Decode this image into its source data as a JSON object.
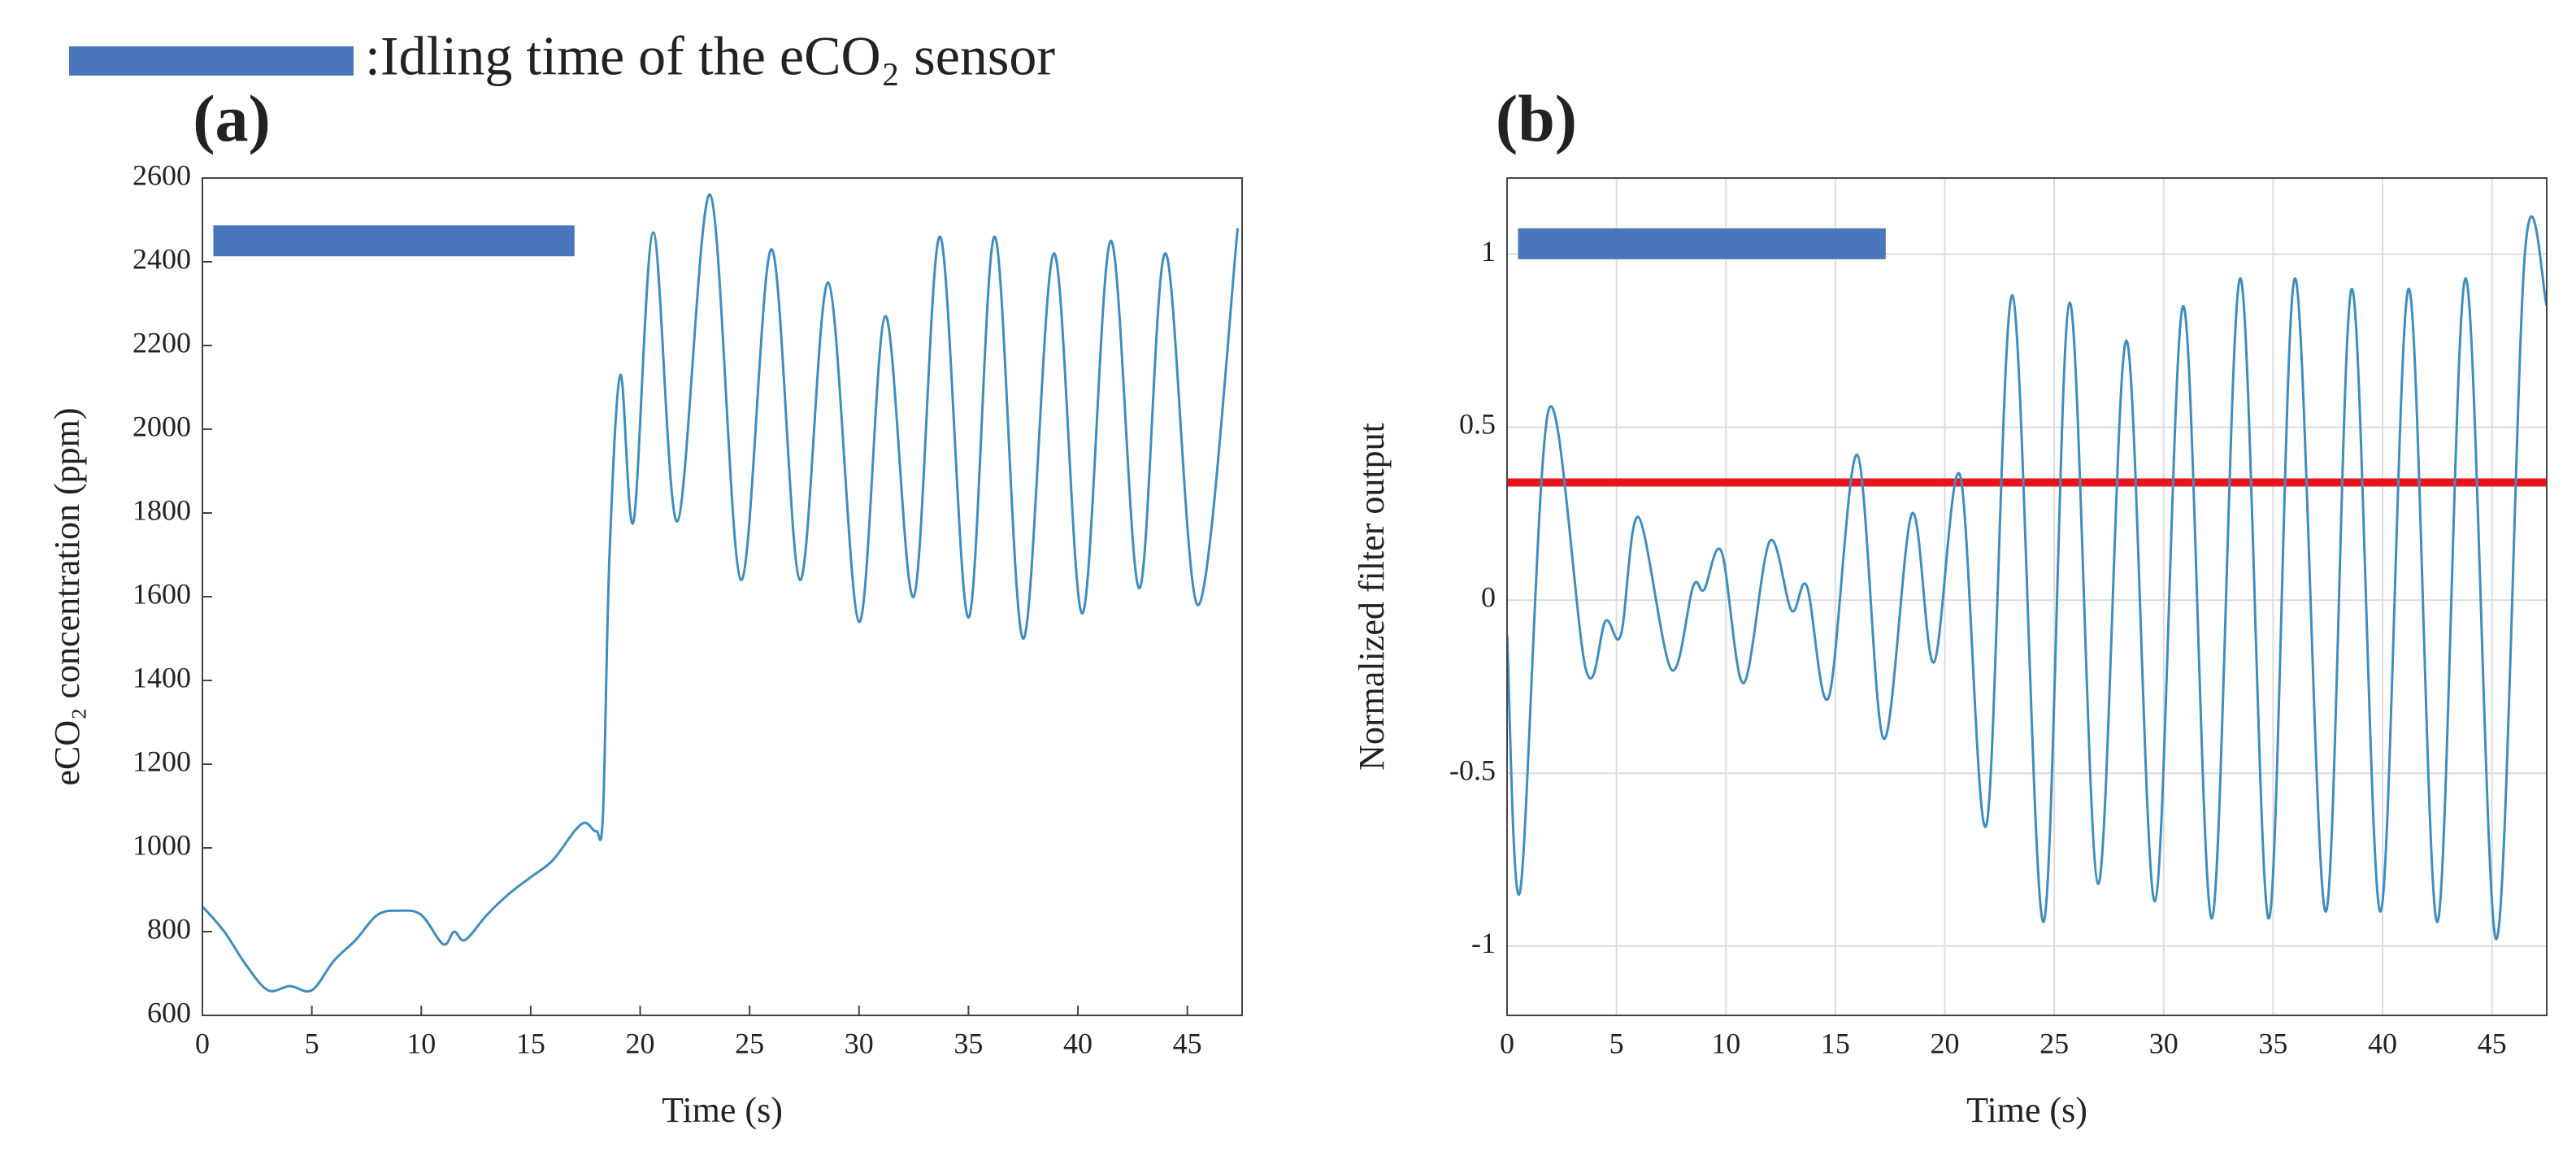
{
  "legend": {
    "label": ":Idling time of the eCO₂ sensor",
    "color": "#4a77bb"
  },
  "chart_data": [
    {
      "type": "line",
      "title": "(a)",
      "x_label": "Time (s)",
      "y_label": "eCO₂ concentration (ppm)",
      "xlim": [
        0,
        47.5
      ],
      "xticks": [
        0,
        5,
        10,
        15,
        20,
        25,
        30,
        35,
        40,
        45
      ],
      "ylim": [
        600,
        2600
      ],
      "yticks": [
        600,
        800,
        1000,
        1200,
        1400,
        1600,
        1800,
        2000,
        2200,
        2400,
        2600
      ],
      "grid": false,
      "idle_interval": [
        0.5,
        17
      ],
      "idle_level": 2450,
      "idle_color": "#4a77bb",
      "x": [
        0,
        1,
        2,
        3,
        4,
        5,
        6,
        7,
        8,
        9,
        10,
        11,
        11.5,
        12,
        13,
        14,
        15,
        16,
        17,
        17.5,
        18,
        18.3,
        18.6,
        19.1,
        19.7,
        20.6,
        21.7,
        23.2,
        24.6,
        26,
        27.3,
        28.6,
        30,
        31.2,
        32.5,
        33.7,
        35,
        36.2,
        37.5,
        38.9,
        40.2,
        41.5,
        42.8,
        44,
        45.5,
        47.3
      ],
      "series": [
        {
          "color": "#3f8dbf",
          "values": [
            860,
            800,
            720,
            660,
            670,
            660,
            730,
            780,
            840,
            850,
            840,
            770,
            800,
            780,
            840,
            890,
            930,
            970,
            1040,
            1060,
            1040,
            1080,
            1700,
            2130,
            1780,
            2470,
            1780,
            2560,
            1640,
            2430,
            1640,
            2350,
            1540,
            2270,
            1600,
            2460,
            1550,
            2460,
            1500,
            2420,
            1560,
            2450,
            1620,
            2420,
            1580,
            2480
          ]
        }
      ]
    },
    {
      "type": "line",
      "title": "(b)",
      "x_label": "Time (s)",
      "y_label": "Normalized filter output",
      "xlim": [
        0,
        47.5
      ],
      "xticks": [
        0,
        5,
        10,
        15,
        20,
        25,
        30,
        35,
        40,
        45
      ],
      "ylim": [
        -1.2,
        1.22
      ],
      "yticks": [
        -1,
        -0.5,
        0,
        0.5,
        1
      ],
      "grid": true,
      "idle_interval": [
        0.5,
        17.3
      ],
      "idle_level": 1.03,
      "idle_color": "#4a77bb",
      "threshold": 0.34,
      "threshold_color": "#e8141a",
      "x": [
        0,
        0.6,
        1.9,
        3.6,
        4.5,
        5.2,
        6,
        7.5,
        8.5,
        9,
        9.8,
        10.8,
        12,
        13,
        13.7,
        14.7,
        16,
        17.2,
        18.5,
        19.5,
        20.7,
        21.9,
        23.1,
        24.5,
        25.7,
        27,
        28.3,
        29.6,
        30.9,
        32.2,
        33.5,
        34.8,
        36,
        37.4,
        38.6,
        39.9,
        41.2,
        42.5,
        43.8,
        45.2,
        46.5,
        47.5
      ],
      "series": [
        {
          "color": "#3f8dbf",
          "values": [
            -0.1,
            -0.84,
            0.55,
            -0.2,
            -0.06,
            -0.1,
            0.24,
            -0.2,
            0.04,
            0.03,
            0.14,
            -0.24,
            0.17,
            -0.03,
            0.04,
            -0.28,
            0.42,
            -0.4,
            0.25,
            -0.18,
            0.36,
            -0.65,
            0.88,
            -0.93,
            0.86,
            -0.82,
            0.75,
            -0.87,
            0.85,
            -0.92,
            0.93,
            -0.92,
            0.93,
            -0.9,
            0.9,
            -0.9,
            0.9,
            -0.93,
            0.93,
            -0.98,
            1.0,
            0.85
          ]
        }
      ]
    }
  ]
}
